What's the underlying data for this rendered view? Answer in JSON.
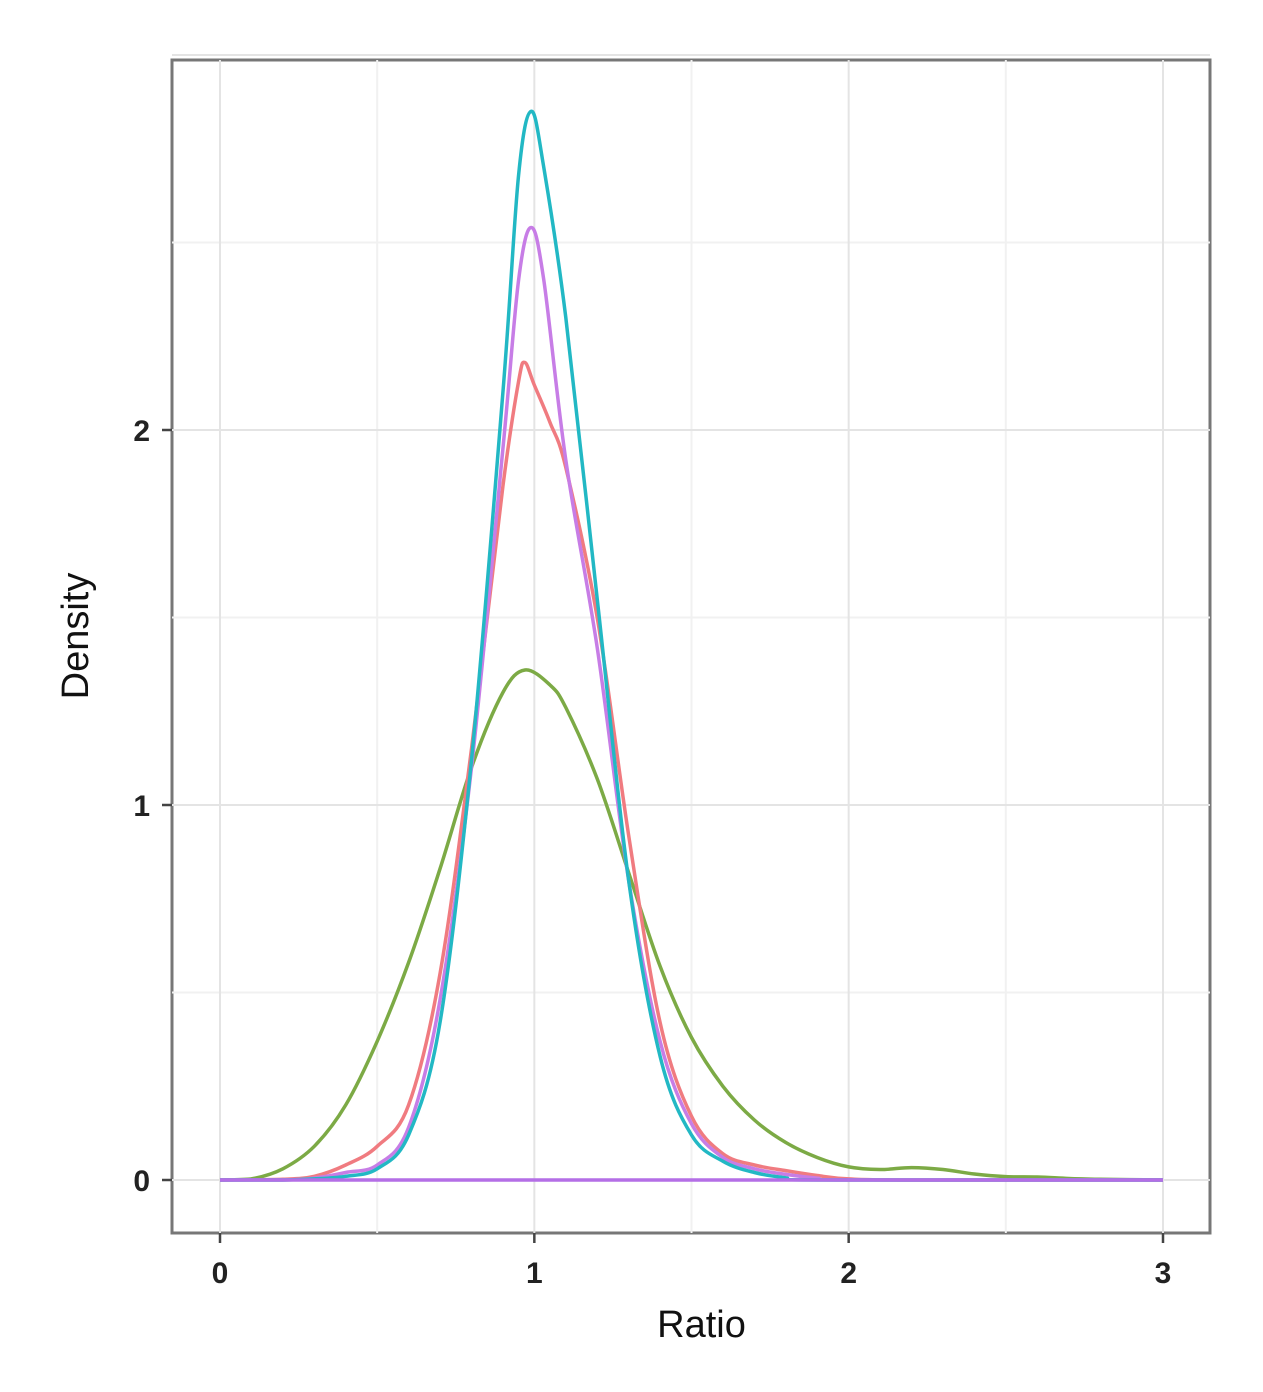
{
  "chart_data": {
    "type": "line",
    "title": "",
    "xlabel": "Ratio",
    "ylabel": "Density",
    "xlim": [
      0,
      3
    ],
    "ylim": [
      -0.12,
      3.2
    ],
    "x_ticks": [
      0,
      1,
      2,
      3
    ],
    "y_ticks": [
      0,
      1,
      2
    ],
    "grid": true,
    "legend": "none",
    "series": [
      {
        "color": "#7caa45",
        "points": [
          [
            0,
            0
          ],
          [
            0.1,
            0.003
          ],
          [
            0.2,
            0.03
          ],
          [
            0.3,
            0.09
          ],
          [
            0.4,
            0.2
          ],
          [
            0.5,
            0.37
          ],
          [
            0.6,
            0.58
          ],
          [
            0.7,
            0.83
          ],
          [
            0.8,
            1.1
          ],
          [
            0.9,
            1.3
          ],
          [
            0.97,
            1.36
          ],
          [
            1.05,
            1.32
          ],
          [
            1.1,
            1.26
          ],
          [
            1.2,
            1.07
          ],
          [
            1.3,
            0.82
          ],
          [
            1.4,
            0.57
          ],
          [
            1.5,
            0.38
          ],
          [
            1.6,
            0.25
          ],
          [
            1.7,
            0.16
          ],
          [
            1.8,
            0.1
          ],
          [
            1.9,
            0.06
          ],
          [
            2.0,
            0.035
          ],
          [
            2.1,
            0.028
          ],
          [
            2.2,
            0.033
          ],
          [
            2.3,
            0.028
          ],
          [
            2.4,
            0.016
          ],
          [
            2.5,
            0.009
          ],
          [
            2.6,
            0.008
          ],
          [
            2.7,
            0.004
          ],
          [
            2.8,
            0.002
          ],
          [
            3.0,
            0
          ]
        ]
      },
      {
        "color": "#f07b80",
        "points": [
          [
            0,
            0
          ],
          [
            0.2,
            0.002
          ],
          [
            0.3,
            0.01
          ],
          [
            0.4,
            0.04
          ],
          [
            0.5,
            0.09
          ],
          [
            0.6,
            0.2
          ],
          [
            0.7,
            0.55
          ],
          [
            0.8,
            1.15
          ],
          [
            0.9,
            1.85
          ],
          [
            0.95,
            2.13
          ],
          [
            0.97,
            2.18
          ],
          [
            1.0,
            2.12
          ],
          [
            1.05,
            2.02
          ],
          [
            1.1,
            1.9
          ],
          [
            1.2,
            1.5
          ],
          [
            1.3,
            0.92
          ],
          [
            1.4,
            0.42
          ],
          [
            1.5,
            0.17
          ],
          [
            1.6,
            0.07
          ],
          [
            1.7,
            0.04
          ],
          [
            1.8,
            0.025
          ],
          [
            1.9,
            0.012
          ],
          [
            2.0,
            0.003
          ],
          [
            2.2,
            0
          ],
          [
            3.0,
            0
          ]
        ]
      },
      {
        "color": "#c77de6",
        "points": [
          [
            0,
            0
          ],
          [
            0.2,
            0
          ],
          [
            0.3,
            0.005
          ],
          [
            0.4,
            0.02
          ],
          [
            0.5,
            0.04
          ],
          [
            0.6,
            0.14
          ],
          [
            0.7,
            0.48
          ],
          [
            0.8,
            1.1
          ],
          [
            0.9,
            1.95
          ],
          [
            0.95,
            2.4
          ],
          [
            0.99,
            2.54
          ],
          [
            1.03,
            2.4
          ],
          [
            1.1,
            1.92
          ],
          [
            1.2,
            1.42
          ],
          [
            1.3,
            0.8
          ],
          [
            1.4,
            0.37
          ],
          [
            1.5,
            0.15
          ],
          [
            1.6,
            0.06
          ],
          [
            1.7,
            0.03
          ],
          [
            1.8,
            0.015
          ],
          [
            1.9,
            0.005
          ],
          [
            2.0,
            0
          ],
          [
            3.0,
            0
          ]
        ]
      },
      {
        "color": "#22b8c4",
        "points": [
          [
            0,
            0
          ],
          [
            0.2,
            0
          ],
          [
            0.3,
            0.003
          ],
          [
            0.4,
            0.01
          ],
          [
            0.5,
            0.03
          ],
          [
            0.6,
            0.12
          ],
          [
            0.7,
            0.42
          ],
          [
            0.8,
            1.12
          ],
          [
            0.9,
            2.1
          ],
          [
            0.95,
            2.68
          ],
          [
            0.99,
            2.85
          ],
          [
            1.03,
            2.7
          ],
          [
            1.1,
            2.3
          ],
          [
            1.2,
            1.55
          ],
          [
            1.3,
            0.8
          ],
          [
            1.4,
            0.33
          ],
          [
            1.5,
            0.12
          ],
          [
            1.6,
            0.05
          ],
          [
            1.7,
            0.02
          ],
          [
            1.8,
            0.006
          ],
          [
            1.9,
            0
          ],
          [
            3.0,
            0
          ]
        ]
      },
      {
        "color": "#b46ee6",
        "points": [
          [
            0,
            0
          ],
          [
            3.0,
            0
          ]
        ]
      }
    ]
  }
}
